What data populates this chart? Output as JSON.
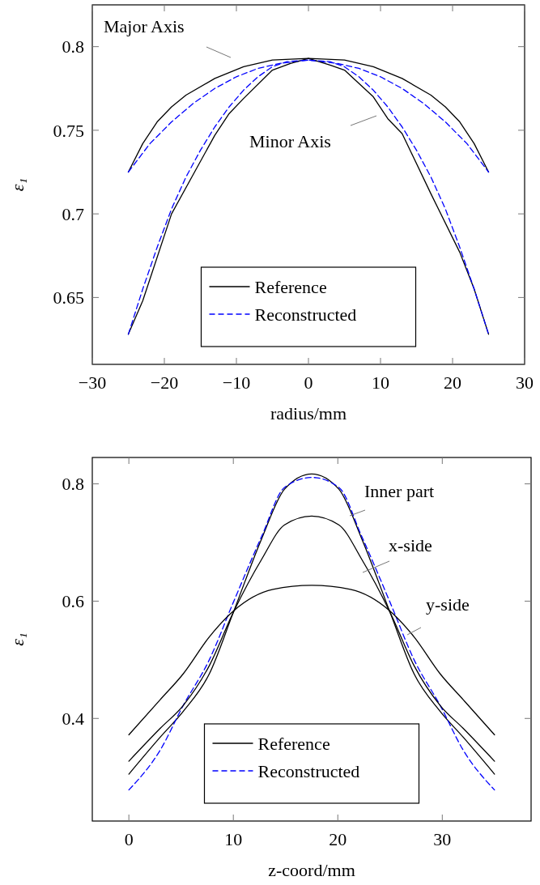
{
  "chart_data": [
    {
      "type": "line",
      "xlabel": "radius/mm",
      "ylabel": "ε₁",
      "xlim": [
        -30,
        30
      ],
      "ylim": [
        0.61,
        0.825
      ],
      "xticks": [
        {
          "value": -30,
          "label": "−30"
        },
        {
          "value": -20,
          "label": "−20"
        },
        {
          "value": -10,
          "label": "−10"
        },
        0,
        10,
        20,
        30
      ],
      "yticks": [
        0.65,
        0.7,
        0.75,
        0.8
      ],
      "legend": "bottom",
      "grid": false,
      "marker": "none",
      "annotations": [
        "Major Axis",
        "Minor Axis"
      ],
      "series": [
        {
          "name": "Reference",
          "color": "#000000",
          "line_style": "solid",
          "x": [
            -25,
            -23,
            -21,
            -19,
            -17,
            -13,
            -9,
            -5,
            0,
            5,
            9,
            13,
            17,
            19,
            21,
            23,
            25
          ],
          "values": [
            0.725,
            0.742,
            0.755,
            0.764,
            0.771,
            0.781,
            0.788,
            0.792,
            0.793,
            0.792,
            0.788,
            0.781,
            0.771,
            0.764,
            0.755,
            0.742,
            0.725
          ]
        },
        {
          "name": "Reconstructed",
          "color": "#0000ff",
          "line_style": "dashed",
          "x": [
            -25,
            -22,
            -19,
            -16,
            -13,
            -10,
            -7,
            -4,
            0,
            4,
            7,
            10,
            13,
            16,
            19,
            22,
            25
          ],
          "values": [
            0.725,
            0.742,
            0.755,
            0.766,
            0.775,
            0.782,
            0.787,
            0.79,
            0.792,
            0.79,
            0.787,
            0.782,
            0.775,
            0.766,
            0.755,
            0.742,
            0.725
          ]
        },
        {
          "color": "#000000",
          "line_style": "solid",
          "x": [
            -25,
            -23,
            -19,
            -13,
            -11,
            -9,
            -5,
            -2.5,
            0,
            3,
            5,
            9,
            11,
            13,
            17,
            21,
            23,
            25
          ],
          "values": [
            0.628,
            0.648,
            0.7,
            0.747,
            0.76,
            0.769,
            0.786,
            0.79,
            0.793,
            0.789,
            0.786,
            0.77,
            0.757,
            0.748,
            0.712,
            0.677,
            0.655,
            0.628
          ]
        },
        {
          "color": "#0000ff",
          "line_style": "dashed",
          "x": [
            -25,
            -23,
            -21,
            -19,
            -17,
            -15,
            -13,
            -11,
            -9,
            -7,
            -5,
            -3,
            0,
            3,
            5,
            7,
            9,
            11,
            13,
            15,
            17,
            19,
            21,
            23,
            25
          ],
          "values": [
            0.628,
            0.655,
            0.68,
            0.703,
            0.722,
            0.738,
            0.752,
            0.764,
            0.774,
            0.782,
            0.788,
            0.791,
            0.792,
            0.791,
            0.788,
            0.782,
            0.774,
            0.764,
            0.752,
            0.738,
            0.722,
            0.703,
            0.68,
            0.655,
            0.628
          ]
        }
      ]
    },
    {
      "type": "line",
      "xlabel": "z-coord/mm",
      "ylabel": "ε₁",
      "xlim": [
        -3.5,
        38.5
      ],
      "ylim": [
        0.225,
        0.845
      ],
      "xticks": [
        0,
        10,
        20,
        30
      ],
      "yticks": [
        0.4,
        0.6,
        0.8
      ],
      "legend": "bottom",
      "grid": false,
      "marker": "none",
      "annotations": [
        "Inner part",
        "x-side",
        "y-side"
      ],
      "series": [
        {
          "name": "Reference",
          "color": "#000000",
          "line_style": "solid",
          "x": [
            0,
            3,
            5.2,
            7.7,
            10,
            12.7,
            14.9,
            17.5,
            20.1,
            22.3,
            25,
            27.3,
            29.8,
            32,
            35
          ],
          "values": [
            0.305,
            0.368,
            0.412,
            0.476,
            0.581,
            0.706,
            0.791,
            0.817,
            0.791,
            0.706,
            0.581,
            0.476,
            0.412,
            0.368,
            0.305
          ]
        },
        {
          "name": "Reconstructed",
          "color": "#0000ff",
          "line_style": "dashed",
          "x": [
            0,
            3,
            5.2,
            7.7,
            10,
            12.7,
            14.9,
            17.5,
            20.1,
            22.3,
            25,
            27.3,
            29.8,
            32,
            35
          ],
          "values": [
            0.278,
            0.346,
            0.422,
            0.5,
            0.598,
            0.71,
            0.794,
            0.811,
            0.794,
            0.71,
            0.598,
            0.5,
            0.422,
            0.346,
            0.278
          ]
        },
        {
          "color": "#000000",
          "line_style": "solid",
          "x": [
            0,
            3,
            5.2,
            7.7,
            10,
            12.7,
            14.9,
            17.5,
            20.1,
            22.3,
            25,
            27.3,
            29.8,
            32,
            35
          ],
          "values": [
            0.327,
            0.383,
            0.422,
            0.49,
            0.581,
            0.671,
            0.73,
            0.745,
            0.73,
            0.671,
            0.581,
            0.49,
            0.422,
            0.383,
            0.327
          ]
        },
        {
          "color": "#000000",
          "line_style": "solid",
          "x": [
            0,
            3,
            5.2,
            7.7,
            10,
            13.8,
            17.5,
            21.2,
            25,
            27.3,
            29.8,
            32,
            35
          ],
          "values": [
            0.372,
            0.432,
            0.476,
            0.539,
            0.583,
            0.62,
            0.627,
            0.62,
            0.583,
            0.539,
            0.476,
            0.432,
            0.372
          ]
        }
      ]
    }
  ]
}
